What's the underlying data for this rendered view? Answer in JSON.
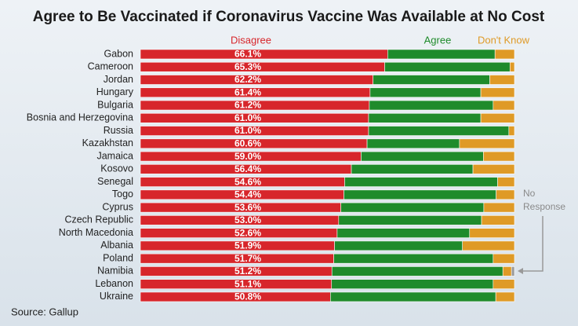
{
  "chart_data": {
    "type": "stacked-bar-horizontal",
    "title": "Agree to Be Vaccinated if Coronavirus Vaccine Was Available at No Cost",
    "source": "Source: Gallup",
    "categories": [
      "Gabon",
      "Cameroon",
      "Jordan",
      "Hungary",
      "Bulgaria",
      "Bosnia and Herzegovina",
      "Russia",
      "Kazakhstan",
      "Jamaica",
      "Kosovo",
      "Senegal",
      "Togo",
      "Cyprus",
      "Czech Republic",
      "North Macedonia",
      "Albania",
      "Poland",
      "Namibia",
      "Lebanon",
      "Ukraine"
    ],
    "xlim": [
      0,
      100
    ],
    "series": [
      {
        "name": "Disagree",
        "color": "#d7262b",
        "values": [
          66.1,
          65.3,
          62.2,
          61.4,
          61.2,
          61.0,
          61.0,
          60.6,
          59.0,
          56.4,
          54.6,
          54.4,
          53.6,
          53.0,
          52.6,
          51.9,
          51.7,
          51.2,
          51.1,
          50.8
        ],
        "value_labels": [
          "66.1%",
          "65.3%",
          "62.2%",
          "61.4%",
          "61.2%",
          "61.0%",
          "61.0%",
          "60.6%",
          "59.0%",
          "56.4%",
          "54.6%",
          "54.4%",
          "53.6%",
          "53.0%",
          "52.6%",
          "51.9%",
          "51.7%",
          "51.2%",
          "51.1%",
          "50.8%"
        ]
      },
      {
        "name": "Agree",
        "color": "#1f8b2b",
        "values": [
          28.7,
          33.5,
          31.2,
          29.6,
          33.1,
          30.0,
          37.5,
          24.7,
          32.7,
          32.5,
          40.9,
          40.7,
          38.2,
          38.2,
          35.4,
          34.2,
          42.6,
          45.7,
          43.2,
          44.2
        ]
      },
      {
        "name": "Don't Know",
        "color": "#df9a26",
        "values": [
          5.2,
          1.2,
          6.6,
          9.0,
          5.7,
          9.0,
          1.5,
          14.7,
          8.3,
          11.1,
          4.5,
          4.9,
          8.2,
          8.8,
          12.0,
          13.9,
          5.7,
          2.3,
          5.7,
          5.0
        ]
      },
      {
        "name": "No Response",
        "color": "#9a9a9a",
        "values": [
          null,
          null,
          null,
          null,
          null,
          null,
          null,
          null,
          null,
          null,
          null,
          null,
          null,
          null,
          null,
          null,
          null,
          0.8,
          null,
          null
        ]
      }
    ]
  }
}
